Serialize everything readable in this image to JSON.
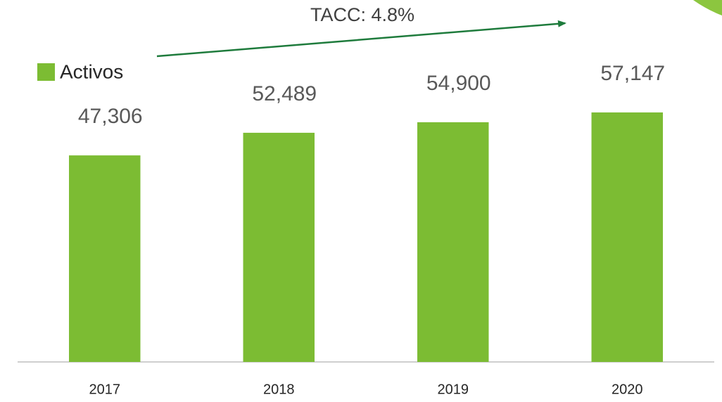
{
  "chart_data": {
    "type": "bar",
    "annotation": "TACC: 4.8%",
    "categories": [
      "2017",
      "2018",
      "2019",
      "2020"
    ],
    "series": [
      {
        "name": "Activos",
        "color": "#7cbc33",
        "values": [
          47306,
          52489,
          54900,
          57147
        ],
        "value_labels": [
          "47,306",
          "52,489",
          "54,900",
          "57,147"
        ]
      }
    ],
    "ylim": [
      0,
      80000
    ],
    "legend": "top-left"
  }
}
